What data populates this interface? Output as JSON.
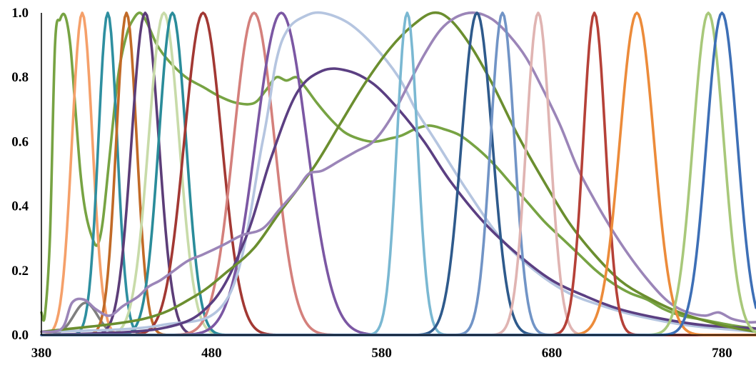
{
  "chart_data": {
    "type": "line",
    "title": "",
    "xlabel": "",
    "ylabel": "",
    "xlim": [
      380,
      800
    ],
    "ylim": [
      0,
      1.0
    ],
    "x_ticks": [
      380,
      480,
      580,
      680,
      780
    ],
    "y_ticks": [
      0.0,
      0.2,
      0.4,
      0.6,
      0.8,
      1.0
    ],
    "x_tick_labels": [
      "380",
      "480",
      "580",
      "680",
      "780"
    ],
    "y_tick_labels": [
      "0.0",
      "0.2",
      "0.4",
      "0.6",
      "0.8",
      "1.0"
    ],
    "grid": false,
    "legend": "none",
    "series": [
      {
        "color": "#77a343",
        "points": [
          [
            380,
            0.07
          ],
          [
            382,
            0.06
          ],
          [
            385,
            0.3
          ],
          [
            388,
            0.9
          ],
          [
            391,
            0.98
          ],
          [
            394,
            0.99
          ],
          [
            397,
            0.9
          ],
          [
            400,
            0.7
          ],
          [
            403,
            0.5
          ],
          [
            406,
            0.38
          ],
          [
            410,
            0.3
          ],
          [
            413,
            0.28
          ],
          [
            416,
            0.35
          ],
          [
            420,
            0.55
          ],
          [
            425,
            0.8
          ],
          [
            430,
            0.93
          ],
          [
            434,
            0.98
          ],
          [
            438,
            1.0
          ],
          [
            442,
            0.97
          ],
          [
            448,
            0.9
          ],
          [
            455,
            0.85
          ],
          [
            465,
            0.8
          ],
          [
            475,
            0.77
          ],
          [
            485,
            0.74
          ],
          [
            495,
            0.72
          ],
          [
            505,
            0.72
          ],
          [
            512,
            0.76
          ],
          [
            518,
            0.8
          ],
          [
            524,
            0.79
          ],
          [
            530,
            0.8
          ],
          [
            535,
            0.77
          ],
          [
            542,
            0.72
          ],
          [
            550,
            0.67
          ],
          [
            558,
            0.63
          ],
          [
            566,
            0.61
          ],
          [
            575,
            0.6
          ],
          [
            585,
            0.61
          ],
          [
            592,
            0.62
          ],
          [
            600,
            0.64
          ],
          [
            608,
            0.65
          ],
          [
            616,
            0.64
          ],
          [
            626,
            0.62
          ],
          [
            636,
            0.58
          ],
          [
            646,
            0.53
          ],
          [
            656,
            0.47
          ],
          [
            666,
            0.41
          ],
          [
            676,
            0.35
          ],
          [
            686,
            0.3
          ],
          [
            696,
            0.25
          ],
          [
            706,
            0.2
          ],
          [
            716,
            0.16
          ],
          [
            726,
            0.13
          ],
          [
            736,
            0.11
          ],
          [
            746,
            0.08
          ],
          [
            756,
            0.06
          ],
          [
            766,
            0.05
          ],
          [
            776,
            0.04
          ],
          [
            786,
            0.03
          ],
          [
            800,
            0.02
          ]
        ]
      },
      {
        "color": "#f5a06a",
        "gauss": {
          "mu": 404,
          "sigma": 6,
          "amp": 1.0
        }
      },
      {
        "color": "#7f7f7f",
        "gauss": {
          "mu": 406,
          "sigma": 7,
          "amp": 0.1
        }
      },
      {
        "color": "#2e8fa0",
        "gauss": {
          "mu": 419,
          "sigma": 5.5,
          "amp": 1.0
        }
      },
      {
        "color": "#c16a27",
        "gauss": {
          "mu": 430,
          "sigma": 6,
          "amp": 1.0
        }
      },
      {
        "color": "#5c3d78",
        "gauss": {
          "mu": 441,
          "sigma": 8,
          "amp": 1.0
        }
      },
      {
        "color": "#c8dba9",
        "gauss": {
          "mu": 452,
          "sigma": 9,
          "amp": 1.0
        }
      },
      {
        "color": "#2a8c9a",
        "gauss": {
          "mu": 457,
          "sigma": 8,
          "amp": 1.0
        }
      },
      {
        "color": "#a23833",
        "gauss": {
          "mu": 475,
          "sigma": 11,
          "amp": 1.0
        }
      },
      {
        "color": "#d4807c",
        "gauss": {
          "mu": 505,
          "sigma": 12,
          "amp": 1.0
        }
      },
      {
        "color": "#7b57a3",
        "gauss": {
          "mu": 521,
          "sigma": 15,
          "amp": 1.0
        }
      },
      {
        "color": "#b5c5e0",
        "points": [
          [
            380,
            0.01
          ],
          [
            450,
            0.03
          ],
          [
            490,
            0.12
          ],
          [
            510,
            0.6
          ],
          [
            518,
            0.85
          ],
          [
            525,
            0.95
          ],
          [
            535,
            0.99
          ],
          [
            545,
            1.0
          ],
          [
            560,
            0.97
          ],
          [
            575,
            0.9
          ],
          [
            590,
            0.8
          ],
          [
            600,
            0.7
          ],
          [
            612,
            0.6
          ],
          [
            630,
            0.45
          ],
          [
            650,
            0.3
          ],
          [
            670,
            0.2
          ],
          [
            690,
            0.13
          ],
          [
            710,
            0.09
          ],
          [
            730,
            0.06
          ],
          [
            760,
            0.03
          ],
          [
            800,
            0.01
          ]
        ]
      },
      {
        "color": "#5b3f82",
        "points": [
          [
            380,
            0.0
          ],
          [
            450,
            0.02
          ],
          [
            480,
            0.1
          ],
          [
            500,
            0.3
          ],
          [
            515,
            0.55
          ],
          [
            530,
            0.75
          ],
          [
            545,
            0.82
          ],
          [
            560,
            0.82
          ],
          [
            575,
            0.78
          ],
          [
            590,
            0.7
          ],
          [
            605,
            0.6
          ],
          [
            620,
            0.48
          ],
          [
            640,
            0.35
          ],
          [
            660,
            0.25
          ],
          [
            680,
            0.17
          ],
          [
            700,
            0.12
          ],
          [
            720,
            0.08
          ],
          [
            745,
            0.05
          ],
          [
            770,
            0.03
          ],
          [
            800,
            0.02
          ]
        ]
      },
      {
        "color": "#6b8e2f",
        "points": [
          [
            380,
            0.01
          ],
          [
            440,
            0.05
          ],
          [
            470,
            0.12
          ],
          [
            490,
            0.2
          ],
          [
            505,
            0.27
          ],
          [
            520,
            0.38
          ],
          [
            540,
            0.52
          ],
          [
            555,
            0.65
          ],
          [
            570,
            0.78
          ],
          [
            585,
            0.89
          ],
          [
            598,
            0.96
          ],
          [
            610,
            1.0
          ],
          [
            620,
            0.98
          ],
          [
            632,
            0.9
          ],
          [
            645,
            0.78
          ],
          [
            660,
            0.62
          ],
          [
            675,
            0.48
          ],
          [
            690,
            0.35
          ],
          [
            705,
            0.25
          ],
          [
            720,
            0.17
          ],
          [
            735,
            0.12
          ],
          [
            755,
            0.07
          ],
          [
            780,
            0.03
          ],
          [
            800,
            0.01
          ]
        ]
      },
      {
        "color": "#9b85b8",
        "points": [
          [
            380,
            0.01
          ],
          [
            392,
            0.02
          ],
          [
            398,
            0.1
          ],
          [
            405,
            0.11
          ],
          [
            412,
            0.08
          ],
          [
            420,
            0.06
          ],
          [
            428,
            0.09
          ],
          [
            437,
            0.12
          ],
          [
            443,
            0.15
          ],
          [
            450,
            0.17
          ],
          [
            458,
            0.2
          ],
          [
            466,
            0.23
          ],
          [
            475,
            0.25
          ],
          [
            487,
            0.28
          ],
          [
            498,
            0.31
          ],
          [
            510,
            0.33
          ],
          [
            520,
            0.39
          ],
          [
            530,
            0.45
          ],
          [
            537,
            0.5
          ],
          [
            545,
            0.51
          ],
          [
            555,
            0.54
          ],
          [
            565,
            0.57
          ],
          [
            575,
            0.6
          ],
          [
            585,
            0.67
          ],
          [
            595,
            0.77
          ],
          [
            605,
            0.87
          ],
          [
            615,
            0.95
          ],
          [
            625,
            0.99
          ],
          [
            635,
            1.0
          ],
          [
            645,
            0.98
          ],
          [
            655,
            0.93
          ],
          [
            665,
            0.86
          ],
          [
            675,
            0.76
          ],
          [
            685,
            0.65
          ],
          [
            695,
            0.52
          ],
          [
            705,
            0.42
          ],
          [
            715,
            0.33
          ],
          [
            725,
            0.25
          ],
          [
            735,
            0.18
          ],
          [
            745,
            0.12
          ],
          [
            752,
            0.09
          ],
          [
            760,
            0.07
          ],
          [
            770,
            0.06
          ],
          [
            778,
            0.07
          ],
          [
            786,
            0.05
          ],
          [
            795,
            0.04
          ],
          [
            800,
            0.04
          ]
        ]
      },
      {
        "color": "#7ab8d2",
        "gauss": {
          "mu": 595,
          "sigma": 6,
          "amp": 1.0
        }
      },
      {
        "color": "#2e5a8c",
        "gauss": {
          "mu": 636,
          "sigma": 9,
          "amp": 1.0
        }
      },
      {
        "color": "#7194c6",
        "gauss": {
          "mu": 651,
          "sigma": 7,
          "amp": 1.0
        }
      },
      {
        "color": "#e0b4b2",
        "gauss": {
          "mu": 672,
          "sigma": 7,
          "amp": 1.0
        }
      },
      {
        "color": "#b54138",
        "gauss": {
          "mu": 705,
          "sigma": 6.5,
          "amp": 1.0
        }
      },
      {
        "color": "#ec8b3a",
        "gauss": {
          "mu": 730,
          "sigma": 10,
          "amp": 1.0
        }
      },
      {
        "color": "#a8c87a",
        "gauss": {
          "mu": 772,
          "sigma": 9,
          "amp": 1.0
        }
      },
      {
        "color": "#3d6fb6",
        "gauss": {
          "mu": 780,
          "sigma": 9,
          "amp": 1.0
        }
      }
    ]
  }
}
